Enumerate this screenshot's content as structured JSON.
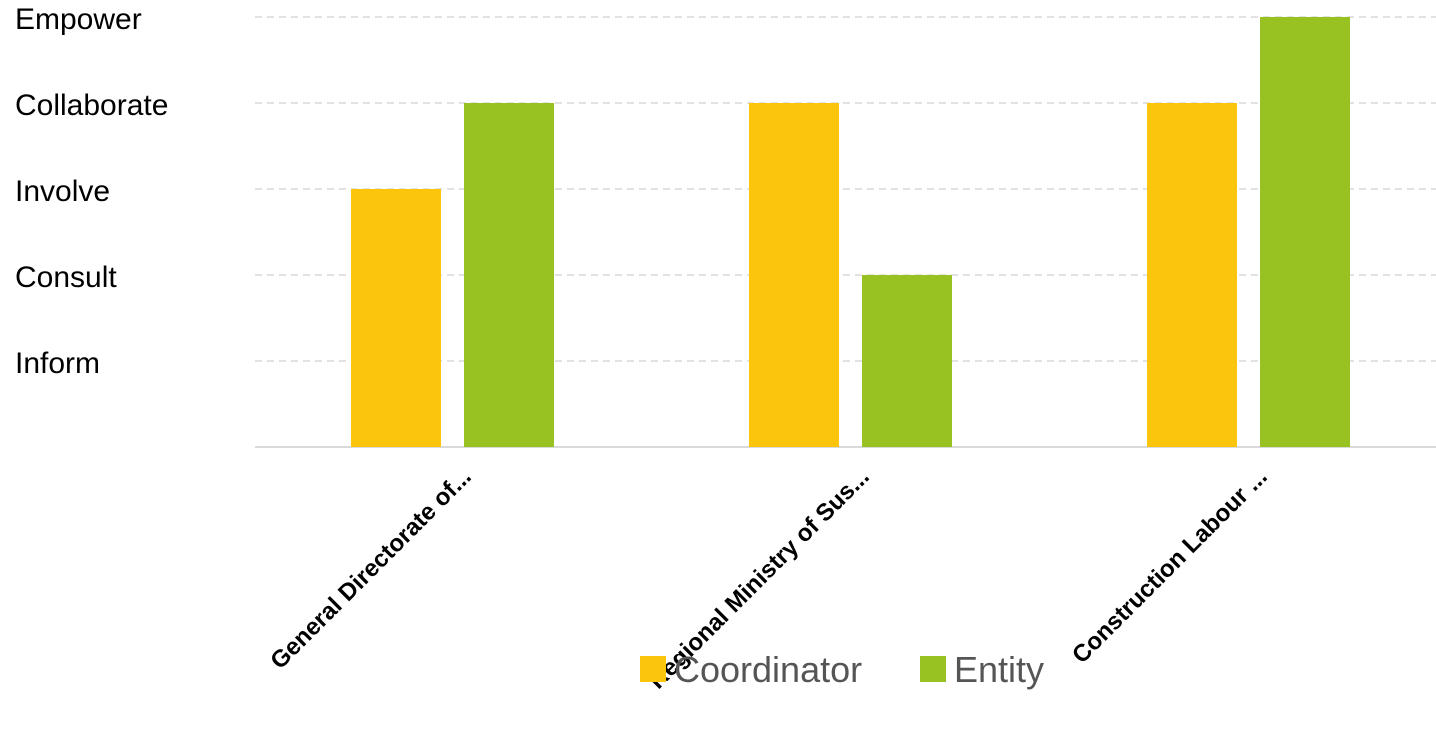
{
  "chart_data": {
    "type": "bar",
    "categories": [
      "General Directorate of...",
      "Regional Ministry of Sus...",
      "Construction Labour ..."
    ],
    "y_levels": [
      "Inform",
      "Consult",
      "Involve",
      "Collaborate",
      "Empower"
    ],
    "series": [
      {
        "name": "Coordinator",
        "color": "#FCC50D",
        "values": [
          3,
          4,
          4
        ]
      },
      {
        "name": "Entity",
        "color": "#98C221",
        "values": [
          4,
          2,
          5
        ]
      }
    ],
    "title": "",
    "xlabel": "",
    "ylabel": "",
    "ylim": [
      0,
      5
    ],
    "grid": true,
    "legend_position": "bottom"
  }
}
